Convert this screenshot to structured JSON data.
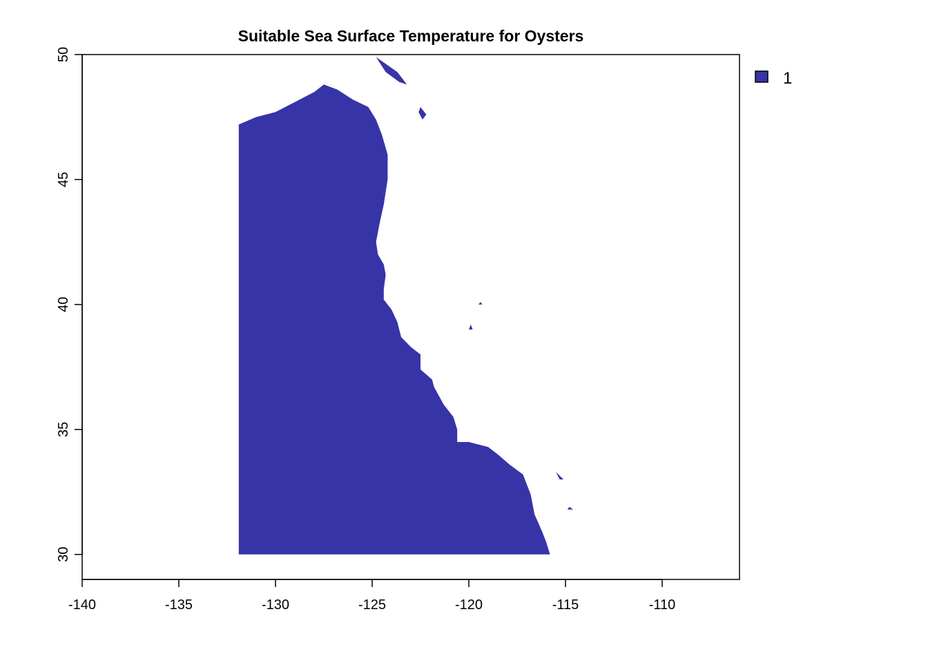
{
  "chart_data": {
    "type": "raster map",
    "title": "Suitable Sea Surface Temperature for Oysters",
    "xlabel": "",
    "ylabel": "",
    "xlim": [
      -140,
      -106
    ],
    "ylim": [
      29,
      50
    ],
    "x_ticks": [
      -140,
      -135,
      -130,
      -125,
      -120,
      -115,
      -110
    ],
    "x_tick_labels": [
      "-140",
      "-135",
      "-130",
      "-125",
      "-120",
      "-115",
      "-110"
    ],
    "y_ticks": [
      30,
      35,
      40,
      45,
      50
    ],
    "y_tick_labels": [
      "30",
      "35",
      "40",
      "45",
      "50"
    ],
    "grid": false,
    "legend_position": "top-right",
    "legend": [
      {
        "label": "1",
        "color": "#3734a8"
      }
    ],
    "fill_color": "#3734a8",
    "suitable_region_outline": [
      [
        -131.9,
        30.0
      ],
      [
        -131.9,
        47.2
      ],
      [
        -131.0,
        47.5
      ],
      [
        -130.0,
        47.7
      ],
      [
        -129.0,
        48.1
      ],
      [
        -128.0,
        48.5
      ],
      [
        -127.5,
        48.8
      ],
      [
        -126.8,
        48.6
      ],
      [
        -126.0,
        48.2
      ],
      [
        -125.2,
        47.9
      ],
      [
        -124.8,
        47.4
      ],
      [
        -124.5,
        46.8
      ],
      [
        -124.2,
        46.0
      ],
      [
        -124.2,
        45.0
      ],
      [
        -124.4,
        44.0
      ],
      [
        -124.6,
        43.3
      ],
      [
        -124.8,
        42.5
      ],
      [
        -124.7,
        42.0
      ],
      [
        -124.4,
        41.6
      ],
      [
        -124.3,
        41.2
      ],
      [
        -124.4,
        40.6
      ],
      [
        -124.4,
        40.2
      ],
      [
        -124.0,
        39.8
      ],
      [
        -123.7,
        39.3
      ],
      [
        -123.5,
        38.7
      ],
      [
        -123.0,
        38.3
      ],
      [
        -122.5,
        38.0
      ],
      [
        -122.5,
        37.4
      ],
      [
        -121.9,
        37.0
      ],
      [
        -121.8,
        36.7
      ],
      [
        -121.3,
        36.0
      ],
      [
        -120.8,
        35.5
      ],
      [
        -120.6,
        35.0
      ],
      [
        -120.6,
        34.5
      ],
      [
        -120.0,
        34.5
      ],
      [
        -119.0,
        34.3
      ],
      [
        -118.5,
        34.0
      ],
      [
        -117.9,
        33.6
      ],
      [
        -117.2,
        33.2
      ],
      [
        -116.8,
        32.4
      ],
      [
        -116.6,
        31.6
      ],
      [
        -116.2,
        30.9
      ],
      [
        -116.0,
        30.5
      ],
      [
        -115.8,
        30.0
      ]
    ],
    "extra_patches": [
      [
        [
          -124.8,
          49.9
        ],
        [
          -123.7,
          49.3
        ],
        [
          -123.2,
          48.8
        ],
        [
          -123.6,
          48.9
        ],
        [
          -124.3,
          49.3
        ]
      ],
      [
        [
          -122.5,
          47.9
        ],
        [
          -122.2,
          47.6
        ],
        [
          -122.4,
          47.4
        ],
        [
          -122.6,
          47.7
        ]
      ],
      [
        [
          -119.4,
          40.1
        ],
        [
          -119.3,
          40.0
        ],
        [
          -119.5,
          40.0
        ]
      ],
      [
        [
          -119.9,
          39.2
        ],
        [
          -119.8,
          39.0
        ],
        [
          -120.0,
          39.0
        ]
      ],
      [
        [
          -115.5,
          33.3
        ],
        [
          -115.1,
          33.0
        ],
        [
          -115.3,
          33.0
        ]
      ],
      [
        [
          -114.8,
          31.9
        ],
        [
          -114.6,
          31.8
        ],
        [
          -114.9,
          31.8
        ]
      ]
    ]
  }
}
